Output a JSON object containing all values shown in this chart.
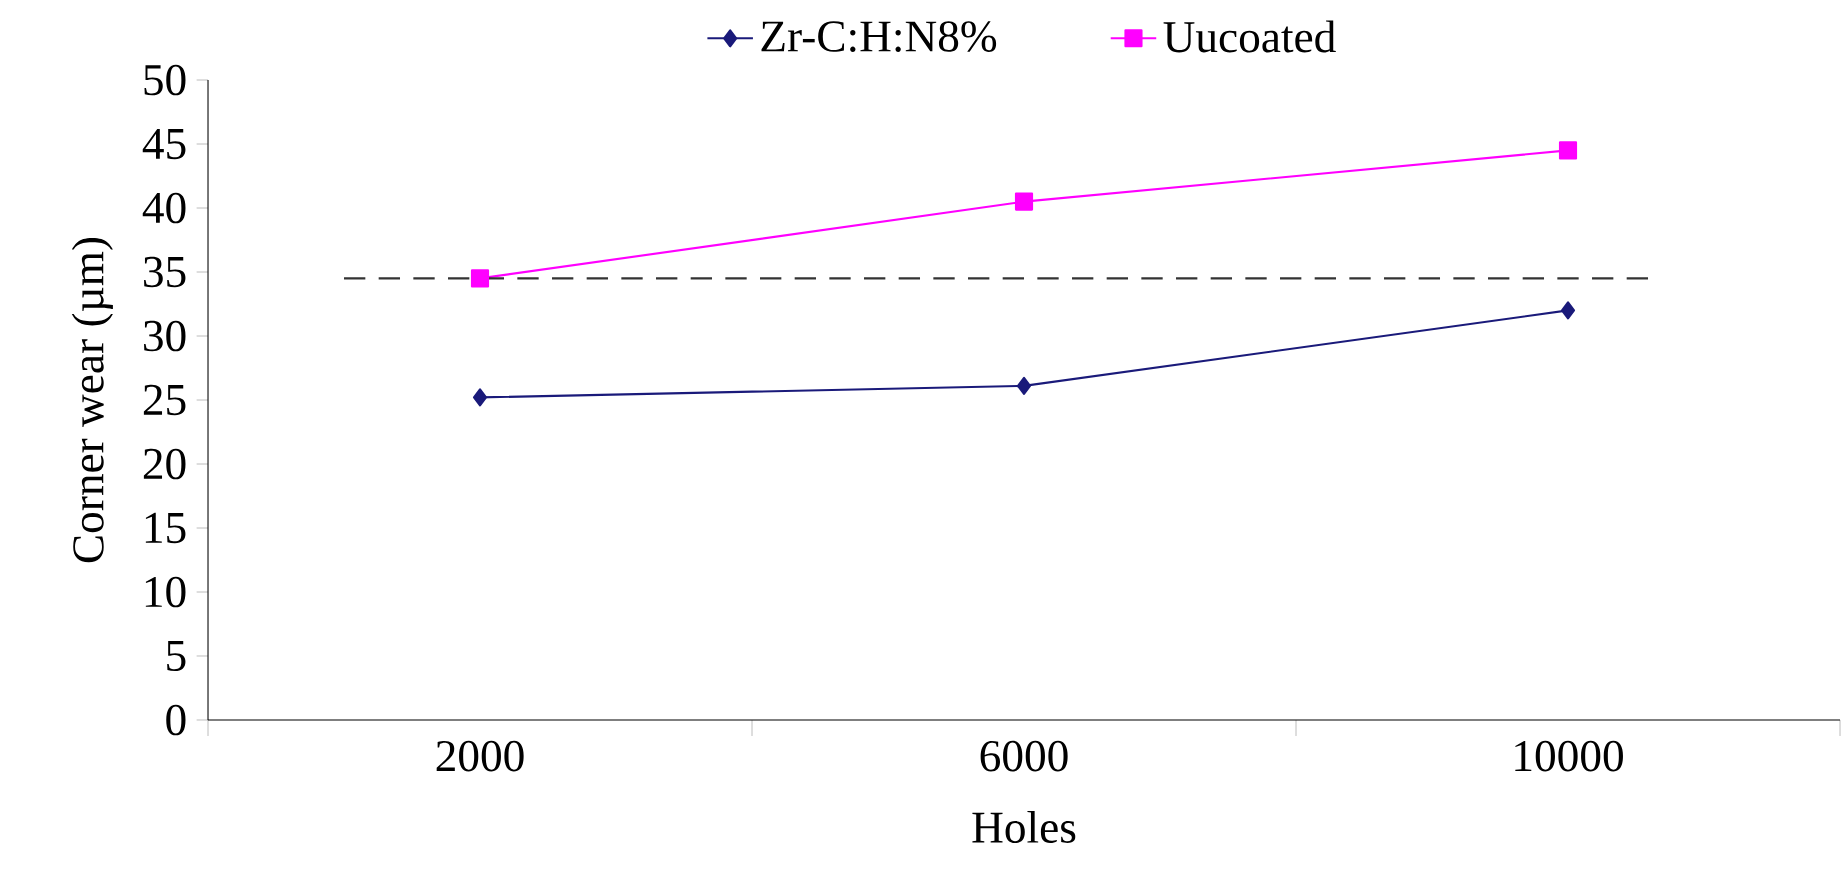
{
  "chart_data": {
    "type": "line",
    "xlabel": "Holes",
    "ylabel": "Corner wear (µm)",
    "categories": [
      "2000",
      "6000",
      "10000"
    ],
    "series": [
      {
        "name": "Zr-C:H:N8%",
        "color": "#1a1a7a",
        "marker": "diamond",
        "values": [
          25.2,
          26.1,
          32
        ]
      },
      {
        "name": "Uucoated",
        "color": "#ff00ff",
        "marker": "square",
        "values": [
          34.5,
          40.5,
          44.5
        ]
      }
    ],
    "ylim": [
      0,
      50
    ],
    "yticks": [
      0,
      5,
      10,
      15,
      20,
      25,
      30,
      35,
      40,
      45,
      50
    ],
    "ref_lines": [
      {
        "axis": "y",
        "value": 34.5,
        "color": "#333333",
        "line_style": "dashed"
      }
    ],
    "grid": false,
    "legend": "top",
    "line_style": "solid"
  }
}
